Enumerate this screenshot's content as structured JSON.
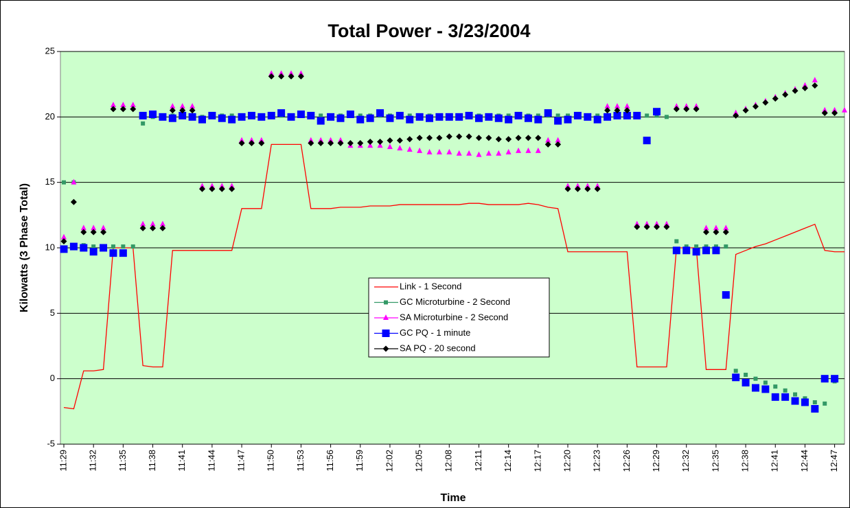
{
  "chart_data": {
    "type": "line",
    "title": "Total Power - 3/23/2004",
    "x_label": "Time",
    "y_label": "Kilowatts (3 Phase Total)",
    "x": [
      "11:29",
      "11:30",
      "11:31",
      "11:32",
      "11:33",
      "11:34",
      "11:35",
      "11:36",
      "11:37",
      "11:38",
      "11:39",
      "11:40",
      "11:41",
      "11:42",
      "11:43",
      "11:44",
      "11:45",
      "11:46",
      "11:47",
      "11:48",
      "11:49",
      "11:50",
      "11:51",
      "11:52",
      "11:53",
      "11:54",
      "11:55",
      "11:56",
      "11:57",
      "11:58",
      "11:59",
      "12:00",
      "12:01",
      "12:02",
      "12:03",
      "12:04",
      "12:05",
      "12:06",
      "12:07",
      "12:08",
      "12:09",
      "12:10",
      "12:11",
      "12:12",
      "12:13",
      "12:14",
      "12:15",
      "12:16",
      "12:17",
      "12:18",
      "12:19",
      "12:20",
      "12:21",
      "12:22",
      "12:23",
      "12:24",
      "12:25",
      "12:26",
      "12:27",
      "12:28",
      "12:29",
      "12:30",
      "12:31",
      "12:32",
      "12:33",
      "12:34",
      "12:35",
      "12:36",
      "12:37",
      "12:38",
      "12:39",
      "12:40",
      "12:41",
      "12:42",
      "12:43",
      "12:44",
      "12:45",
      "12:46",
      "12:47",
      "12:48"
    ],
    "xlim": [
      "11:29",
      "12:48"
    ],
    "xticks": [
      "11:29",
      "11:32",
      "11:35",
      "11:38",
      "11:41",
      "11:44",
      "11:47",
      "11:50",
      "11:53",
      "11:56",
      "11:59",
      "12:02",
      "12:05",
      "12:08",
      "12:11",
      "12:14",
      "12:17",
      "12:20",
      "12:23",
      "12:26",
      "12:29",
      "12:32",
      "12:35",
      "12:38",
      "12:41",
      "12:44",
      "12:47"
    ],
    "ylim": [
      -5,
      25
    ],
    "yticks": [
      -5,
      0,
      5,
      10,
      15,
      20,
      25
    ],
    "grid": true,
    "series": [
      {
        "name": "Link - 1 Second",
        "color": "#ff0000",
        "style": "line",
        "values": [
          -2.2,
          -2.3,
          0.6,
          0.6,
          0.7,
          10,
          10,
          10,
          1,
          0.9,
          0.9,
          9.8,
          9.8,
          9.8,
          9.8,
          9.8,
          9.8,
          9.8,
          13,
          13,
          13,
          17.9,
          17.9,
          17.9,
          17.9,
          13,
          13,
          13,
          13.1,
          13.1,
          13.1,
          13.2,
          13.2,
          13.2,
          13.3,
          13.3,
          13.3,
          13.3,
          13.3,
          13.3,
          13.3,
          13.4,
          13.4,
          13.3,
          13.3,
          13.3,
          13.3,
          13.4,
          13.3,
          13.1,
          13,
          9.7,
          9.7,
          9.7,
          9.7,
          9.7,
          9.7,
          9.7,
          0.9,
          0.9,
          0.9,
          0.9,
          10,
          10,
          10,
          0.7,
          0.7,
          0.7,
          9.5,
          9.8,
          10.1,
          10.3,
          10.6,
          10.9,
          11.2,
          11.5,
          11.8,
          9.8,
          9.7,
          9.7
        ]
      },
      {
        "name": "GC Microturbine  - 2 Second",
        "color": "#339966",
        "style": "square-small",
        "values": [
          15,
          15,
          10.2,
          10.1,
          10.1,
          10.1,
          10.1,
          10.1,
          19.5,
          20,
          20,
          20.1,
          20.1,
          20.1,
          20,
          20.1,
          20.1,
          20.1,
          20.1,
          20.1,
          20.1,
          20.1,
          20.1,
          20.1,
          20.1,
          20.1,
          20.1,
          20.1,
          20.1,
          20.1,
          20.1,
          20.1,
          20.1,
          20.1,
          20.1,
          20.1,
          20.1,
          20.1,
          20.1,
          20.1,
          20.1,
          20.1,
          20.1,
          20.1,
          20.1,
          20.1,
          20.1,
          20.1,
          20.1,
          20.1,
          20.1,
          20.1,
          20.1,
          20.1,
          20.1,
          20.1,
          20.1,
          20.1,
          20.1,
          20.1,
          20.1,
          20,
          10.5,
          10.1,
          10.1,
          10.1,
          10.1,
          10.1,
          0.6,
          0.3,
          0,
          -0.3,
          -0.6,
          -0.9,
          -1.2,
          -1.5,
          -1.8,
          -1.9,
          -0.2,
          null
        ]
      },
      {
        "name": "SA Microturbine - 2 Second",
        "color": "#ff00ff",
        "style": "triangle",
        "values": [
          10.8,
          15,
          11.5,
          11.5,
          11.5,
          20.9,
          20.9,
          20.9,
          11.8,
          11.8,
          11.8,
          20.8,
          20.8,
          20.8,
          14.7,
          14.7,
          14.7,
          14.7,
          18.2,
          18.2,
          18.2,
          23.3,
          23.3,
          23.3,
          23.3,
          18.2,
          18.2,
          18.2,
          18.2,
          17.8,
          17.8,
          17.8,
          17.8,
          17.7,
          17.6,
          17.5,
          17.4,
          17.3,
          17.3,
          17.3,
          17.2,
          17.2,
          17.1,
          17.2,
          17.2,
          17.3,
          17.4,
          17.4,
          17.4,
          18.2,
          18.2,
          14.7,
          14.7,
          14.7,
          14.7,
          20.8,
          20.8,
          20.8,
          11.8,
          11.8,
          11.8,
          11.8,
          20.8,
          20.8,
          20.8,
          11.5,
          11.5,
          11.5,
          20.3,
          20.6,
          20.9,
          21.2,
          21.5,
          21.8,
          22.1,
          22.4,
          22.8,
          20.5,
          20.5,
          20.5
        ]
      },
      {
        "name": "GC PQ - 1 minute",
        "color": "#0000ff",
        "style": "square",
        "values": [
          9.9,
          10.1,
          10,
          9.7,
          10,
          9.6,
          9.6,
          null,
          20.1,
          20.2,
          20,
          19.9,
          20.1,
          20,
          19.8,
          20.1,
          19.9,
          19.8,
          20,
          20.1,
          20,
          20.1,
          20.3,
          20,
          20.2,
          20.1,
          19.7,
          20,
          19.9,
          20.2,
          19.8,
          19.9,
          20.3,
          19.9,
          20.1,
          19.8,
          20,
          19.9,
          20,
          20,
          20,
          20.1,
          19.9,
          20,
          19.9,
          19.8,
          20.1,
          19.9,
          19.8,
          20.3,
          19.7,
          19.8,
          20.1,
          20,
          19.8,
          20,
          20.1,
          20.1,
          20.1,
          18.2,
          20.4,
          null,
          9.8,
          9.8,
          9.7,
          9.8,
          9.8,
          6.4,
          0.1,
          -0.3,
          -0.7,
          -0.8,
          -1.4,
          -1.4,
          -1.7,
          -1.8,
          -2.3,
          0,
          0,
          null
        ]
      },
      {
        "name": "SA PQ - 20 second",
        "color": "#000000",
        "style": "diamond",
        "values": [
          10.5,
          13.5,
          11.2,
          11.2,
          11.2,
          20.6,
          20.6,
          20.6,
          11.5,
          11.5,
          11.5,
          20.5,
          20.5,
          20.5,
          14.5,
          14.5,
          14.5,
          14.5,
          18,
          18,
          18,
          23.1,
          23.1,
          23.1,
          23.1,
          18,
          18,
          18,
          18,
          18,
          18,
          18.1,
          18.1,
          18.2,
          18.2,
          18.3,
          18.4,
          18.4,
          18.4,
          18.5,
          18.5,
          18.5,
          18.4,
          18.4,
          18.3,
          18.3,
          18.4,
          18.4,
          18.4,
          17.9,
          17.9,
          14.5,
          14.5,
          14.5,
          14.5,
          20.5,
          20.5,
          20.5,
          11.6,
          11.6,
          11.6,
          11.6,
          20.6,
          20.6,
          20.6,
          11.2,
          11.2,
          11.2,
          20.1,
          20.5,
          20.8,
          21.1,
          21.4,
          21.7,
          22,
          22.2,
          22.4,
          20.3,
          20.3,
          null
        ]
      }
    ]
  }
}
